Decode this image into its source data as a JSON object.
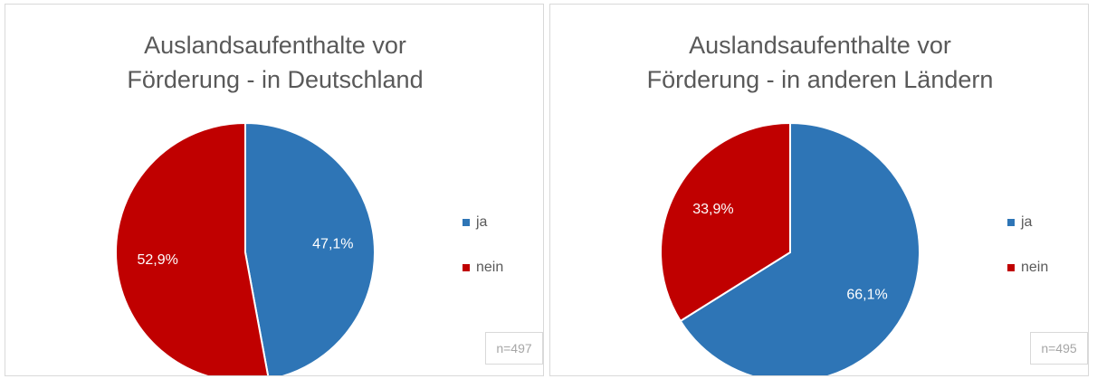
{
  "chart_data": [
    {
      "type": "pie",
      "title": "Auslandsaufenthalte vor Förderung - in Deutschland",
      "categories": [
        "ja",
        "nein"
      ],
      "values": [
        47.1,
        52.9
      ],
      "value_labels": [
        "47,1%",
        "52,9%"
      ],
      "colors": [
        "#2e75b6",
        "#c00000"
      ],
      "annotation": "n=497"
    },
    {
      "type": "pie",
      "title": "Auslandsaufenthalte vor Förderung - in anderen Ländern",
      "categories": [
        "ja",
        "nein"
      ],
      "values": [
        66.1,
        33.9
      ],
      "value_labels": [
        "66,1%",
        "33,9%"
      ],
      "colors": [
        "#2e75b6",
        "#c00000"
      ],
      "annotation": "n=495"
    }
  ]
}
